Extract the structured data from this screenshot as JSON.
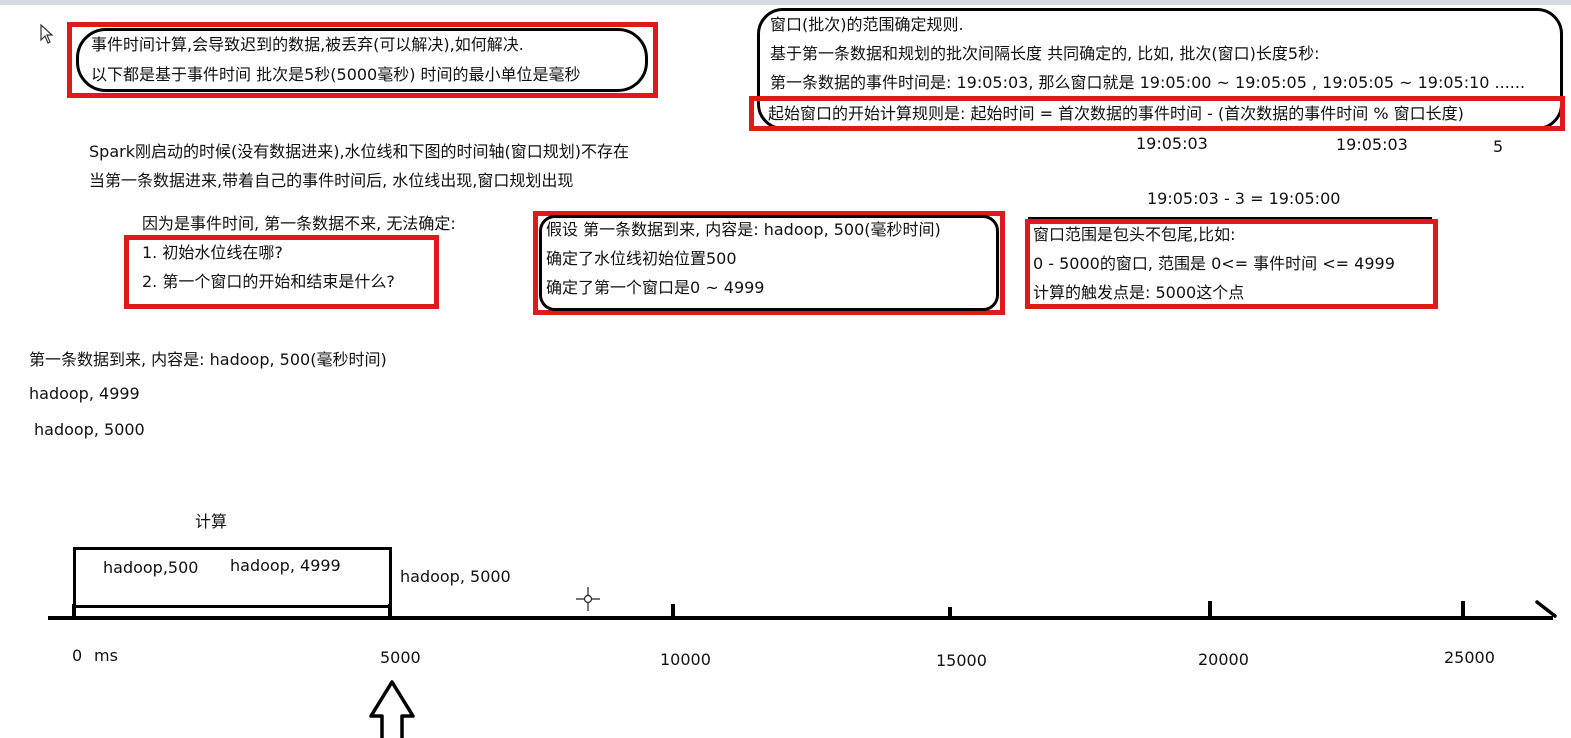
{
  "box_top_left": {
    "line1": "事件时间计算,会导致迟到的数据,被丢弃(可以解决),如何解决.",
    "line2": "以下都是基于事件时间 批次是5秒(5000毫秒) 时间的最小单位是毫秒"
  },
  "box_top_right": {
    "line1": "窗口(批次)的范围确定规则.",
    "line2": "基于第一条数据和规划的批次间隔长度 共同确定的, 比如, 批次(窗口)长度5秒:",
    "line3": "第一条数据的事件时间是: 19:05:03, 那么窗口就是 19:05:00 ~ 19:05:05 , 19:05:05 ~ 19:05:10 ......",
    "line4": "起始窗口的开始计算规则是: 起始时间 = 首次数据的事件时间 - (首次数据的事件时间 % 窗口长度)"
  },
  "calc": {
    "a": "19:05:03",
    "b": "19:05:03",
    "c": "5",
    "result": "19:05:03 - 3 = 19:05:00"
  },
  "intro": {
    "line1": "Spark刚启动的时候(没有数据进来),水位线和下图的时间轴(窗口规划)不存在",
    "line2": "当第一条数据进来,带着自己的事件时间后, 水位线出现,窗口规划出现"
  },
  "because": "因为是事件时间, 第一条数据不来, 无法确定:",
  "questions": {
    "q1": "1. 初始水位线在哪?",
    "q2": "2. 第一个窗口的开始和结束是什么?"
  },
  "assume": {
    "line1": "假设 第一条数据到来, 内容是: hadoop, 500(毫秒时间)",
    "line2": "确定了水位线初始位置500",
    "line3": "确定了第一个窗口是0 ~ 4999"
  },
  "range": {
    "line1": "窗口范围是包头不包尾,比如:",
    "line2": "0 - 5000的窗口, 范围是  0<= 事件时间 <= 4999",
    "line3": "计算的触发点是: 5000这个点"
  },
  "records": {
    "first": "第一条数据到来, 内容是: hadoop, 500(毫秒时间)",
    "second": "hadoop, 4999",
    "third": "hadoop, 5000"
  },
  "timeline": {
    "compute_label": "计算",
    "window_item1": "hadoop,500",
    "window_item2": "hadoop, 4999",
    "outside_item": "hadoop, 5000",
    "tick0": "0",
    "unit": "ms",
    "tick5000": "5000",
    "tick10000": "10000",
    "tick15000": "15000",
    "tick20000": "20000",
    "tick25000": "25000"
  },
  "colors": {
    "red": "#e0191b",
    "black": "#000000"
  }
}
